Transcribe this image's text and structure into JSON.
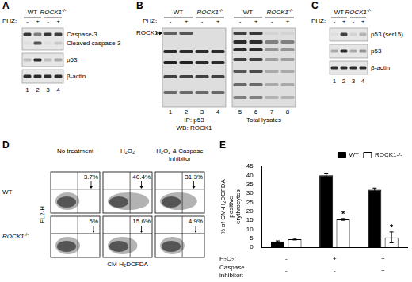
{
  "panels": [
    {
      "letter": "A",
      "treatment_label": "PHZ:",
      "genotypes": [
        {
          "text": "WT"
        },
        {
          "text": "ROCK1",
          "sup": "-/-"
        }
      ],
      "treatment": [
        "-",
        "+",
        "-",
        "+"
      ],
      "strips": [
        {
          "labels": [
            "Caspase-3",
            "Cleaved caspase-3"
          ]
        },
        {
          "labels": [
            "p53"
          ]
        },
        {
          "labels": [
            "β-actin"
          ]
        }
      ],
      "lanes": [
        1,
        2,
        3,
        4
      ]
    },
    {
      "letter": "B",
      "treatment_label": "PHZ:",
      "band_label": "ROCK1",
      "groups": [
        {
          "genotypes": [
            {
              "text": "WT"
            },
            {
              "text": "ROCK1",
              "sup": "-/-"
            }
          ],
          "treatment": [
            "-",
            "+",
            "-",
            "+"
          ],
          "lanes": [
            1,
            2,
            3,
            4
          ],
          "captions": [
            "IP: p53",
            "WB: ROCK1"
          ]
        },
        {
          "genotypes": [
            {
              "text": "WT"
            },
            {
              "text": "ROCK1",
              "sup": "-/-"
            }
          ],
          "treatment": [
            "-",
            "+",
            "-",
            "+"
          ],
          "lanes": [
            5,
            6,
            7,
            8
          ],
          "captions": [
            "Total lysates"
          ]
        }
      ]
    },
    {
      "letter": "C",
      "treatment_label": "PHZ:",
      "genotypes": [
        {
          "text": "WT"
        },
        {
          "text": "ROCK1",
          "sup": "-/-"
        }
      ],
      "treatment": [
        "-",
        "+",
        "-",
        "+"
      ],
      "strips": [
        {
          "labels": [
            "p53 (ser15)"
          ]
        },
        {
          "labels": [
            "p53"
          ]
        },
        {
          "labels": [
            "β-actin"
          ]
        }
      ],
      "lanes": [
        1,
        2,
        3,
        4
      ]
    },
    {
      "letter": "D",
      "columns": [
        "No treatment",
        "H₂O₂",
        "H₂O₂ & Caspase inhibitor"
      ],
      "rows": [
        {
          "label": {
            "text": "WT"
          },
          "percentages": [
            "3.7%",
            "40.4%",
            "31.3%"
          ]
        },
        {
          "label": {
            "text": "ROCK1",
            "sup": "-/-"
          },
          "percentages": [
            "5%",
            "15.6%",
            "4.9%"
          ]
        }
      ],
      "y_label": "FL2-H",
      "x_label": "CM-H₂DCFDA"
    }
  ],
  "chart_data": {
    "panel": "E",
    "type": "bar",
    "y_label": "% of CM-H₂DCFDA positive erythrocytes",
    "categories": [
      null,
      null,
      null
    ],
    "treatments": [
      {
        "label": "H₂O₂:",
        "values": [
          "-",
          "+",
          "+"
        ]
      },
      {
        "label": "Caspase inhibitor:",
        "values": [
          "-",
          "-",
          "+"
        ]
      }
    ],
    "series": [
      {
        "name": "WT",
        "color": "#000000",
        "values": [
          3.3,
          40,
          32
        ],
        "errors": [
          0.3,
          0.8,
          1
        ]
      },
      {
        "name": "ROCK1-/-",
        "color": "#ffffff",
        "values": [
          4.5,
          15.5,
          5.5
        ],
        "errors": [
          0.4,
          0.5,
          3
        ],
        "annotations": [
          null,
          "*",
          "*"
        ]
      }
    ],
    "ylim": [
      0,
      45
    ],
    "yticks": [
      0,
      5,
      10,
      15,
      20,
      25,
      30,
      35,
      40,
      45
    ],
    "grid": false,
    "legend": "top-right",
    "tick_labels": "y"
  }
}
